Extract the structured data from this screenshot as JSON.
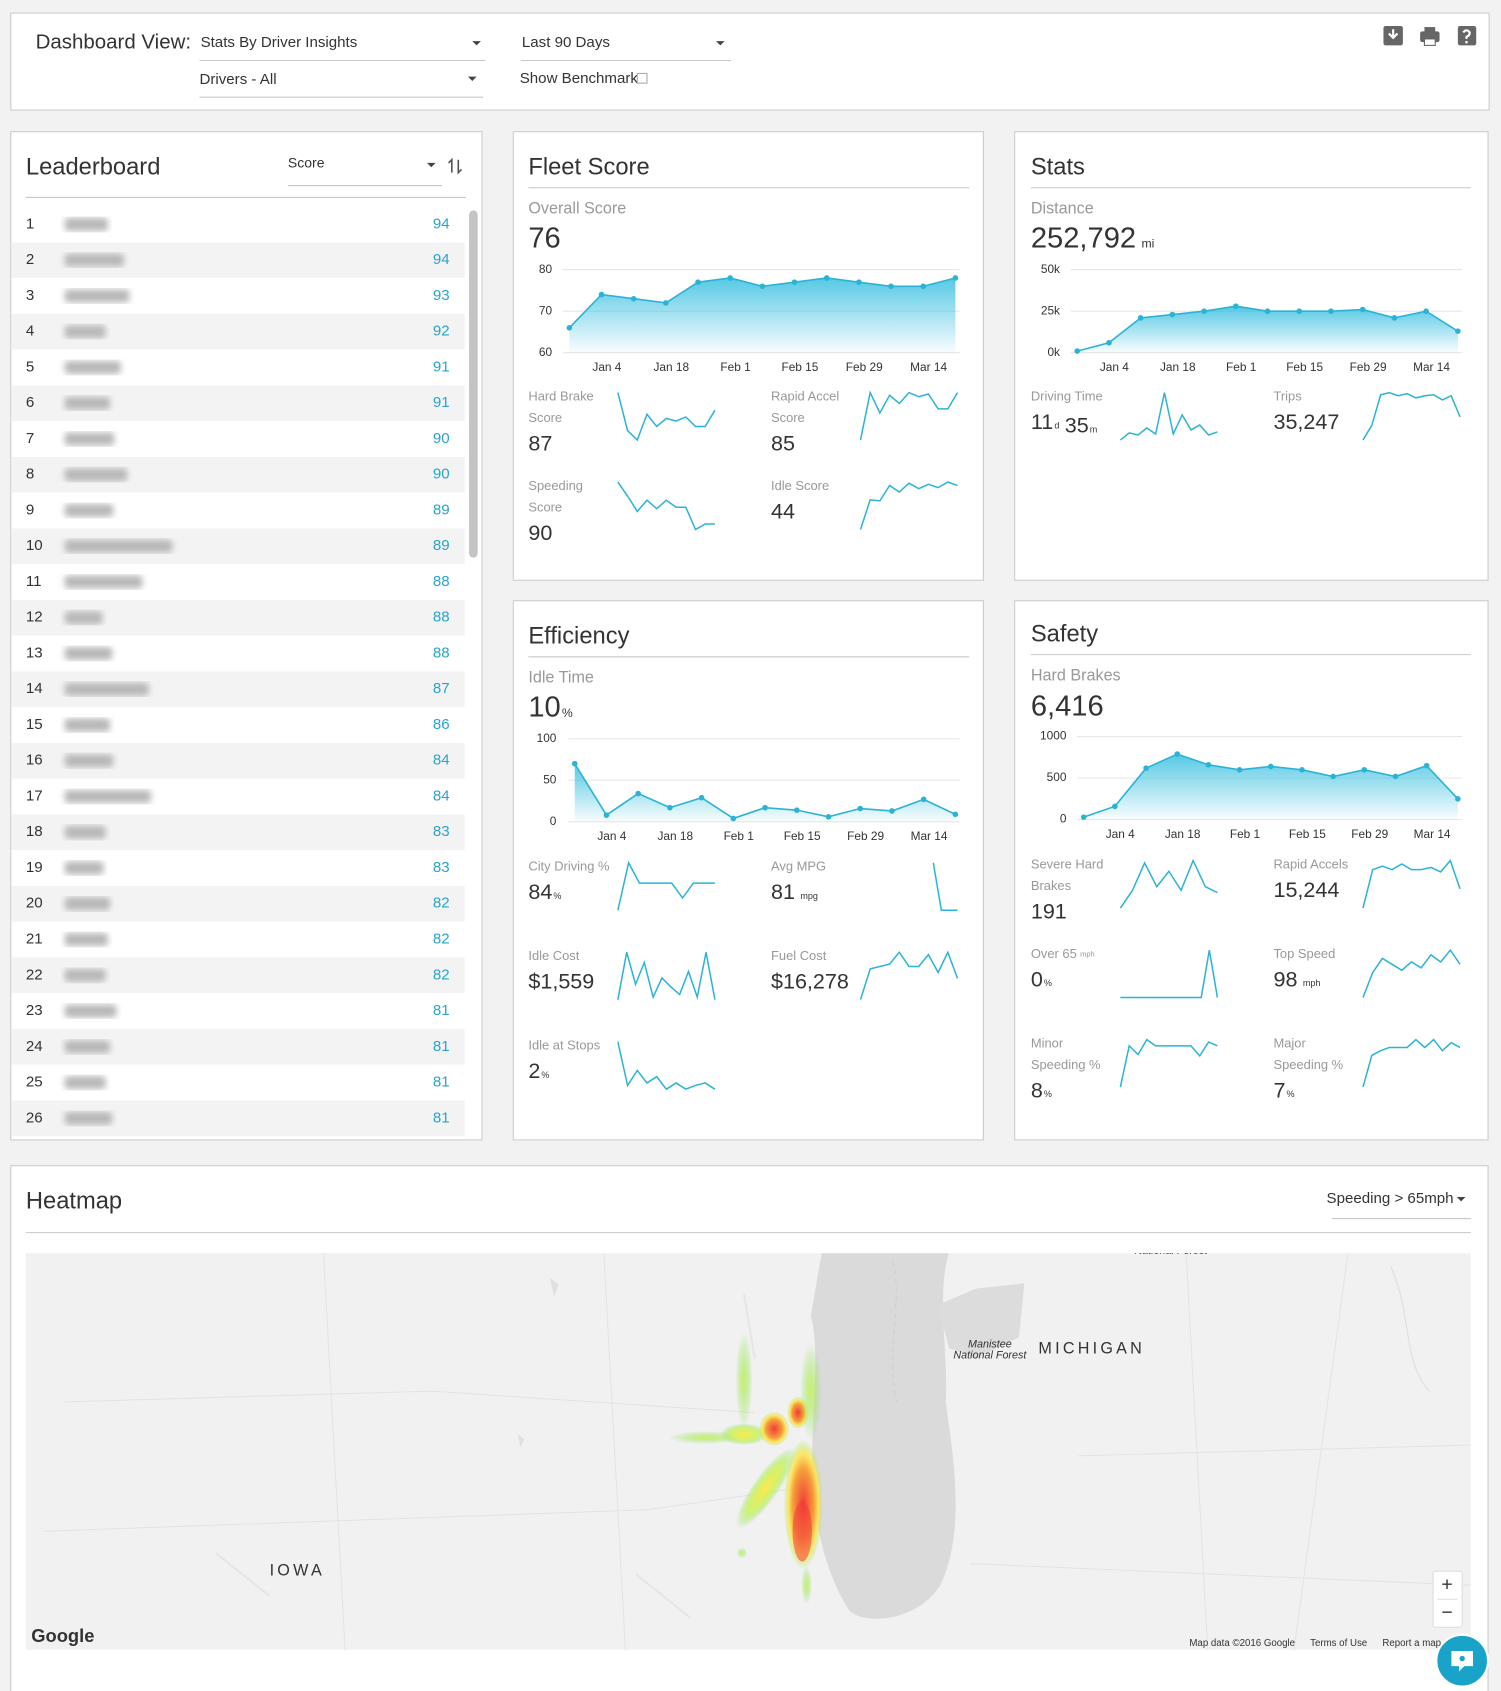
{
  "header": {
    "label": "Dashboard View:",
    "view": "Stats By Driver Insights",
    "drivers": "Drivers - All",
    "period": "Last 90 Days",
    "benchmark": "Show Benchmark"
  },
  "leaderboard": {
    "title": "Leaderboard",
    "sort": "Score",
    "rows": [
      {
        "rank": 1,
        "score": 94
      },
      {
        "rank": 2,
        "score": 94
      },
      {
        "rank": 3,
        "score": 93
      },
      {
        "rank": 4,
        "score": 92
      },
      {
        "rank": 5,
        "score": 91
      },
      {
        "rank": 6,
        "score": 91
      },
      {
        "rank": 7,
        "score": 90
      },
      {
        "rank": 8,
        "score": 90
      },
      {
        "rank": 9,
        "score": 89
      },
      {
        "rank": 10,
        "score": 89
      },
      {
        "rank": 11,
        "score": 88
      },
      {
        "rank": 12,
        "score": 88
      },
      {
        "rank": 13,
        "score": 88
      },
      {
        "rank": 14,
        "score": 87
      },
      {
        "rank": 15,
        "score": 86
      },
      {
        "rank": 16,
        "score": 84
      },
      {
        "rank": 17,
        "score": 84
      },
      {
        "rank": 18,
        "score": 83
      },
      {
        "rank": 19,
        "score": 83
      },
      {
        "rank": 20,
        "score": 82
      },
      {
        "rank": 21,
        "score": 82
      },
      {
        "rank": 22,
        "score": 82
      },
      {
        "rank": 23,
        "score": 81
      },
      {
        "rank": 24,
        "score": 81
      },
      {
        "rank": 25,
        "score": 81
      },
      {
        "rank": 26,
        "score": 81
      }
    ]
  },
  "fleet_score": {
    "title": "Fleet Score",
    "main": {
      "label": "Overall Score",
      "parts": [
        {
          "value": 76
        }
      ]
    },
    "metrics": [
      {
        "label": [
          "Hard Brake",
          "Score"
        ],
        "parts": [
          {
            "value": 87
          }
        ],
        "trend": [
          43,
          15,
          8,
          27,
          18,
          24,
          22,
          25,
          18,
          18,
          30
        ]
      },
      {
        "label": [
          "Rapid Accel",
          "Score"
        ],
        "parts": [
          {
            "value": 85
          }
        ],
        "trend": [
          10,
          45,
          30,
          43,
          37,
          45,
          42,
          44,
          33,
          33,
          45
        ]
      },
      {
        "label": [
          "Speeding",
          "Score"
        ],
        "parts": [
          {
            "value": 90
          }
        ],
        "trend": [
          38,
          28,
          17,
          25,
          19,
          25,
          20,
          20,
          4,
          8,
          8
        ]
      },
      {
        "label": [
          "Idle Score"
        ],
        "parts": [
          {
            "value": 44
          }
        ],
        "trend": [
          3,
          30,
          29,
          43,
          37,
          45,
          40,
          44,
          41,
          46,
          43
        ]
      }
    ]
  },
  "stats": {
    "title": "Stats",
    "main": {
      "label": "Distance",
      "parts": [
        {
          "value": "252,792",
          "unit": "mi"
        }
      ]
    },
    "metrics": [
      {
        "label": [
          "Driving Time"
        ],
        "parts": [
          {
            "value": 11,
            "unit": "d"
          },
          {
            "value": 35,
            "unit": "m"
          }
        ],
        "trend": [
          2,
          9,
          7,
          14,
          8,
          49,
          8,
          27,
          12,
          17,
          7,
          10
        ]
      },
      {
        "label": [
          "Trips"
        ],
        "parts": [
          {
            "value": "35,247"
          }
        ],
        "trend": [
          2,
          16,
          45,
          47,
          44,
          46,
          42,
          44,
          45,
          40,
          44,
          24
        ]
      }
    ]
  },
  "efficiency": {
    "title": "Efficiency",
    "main": {
      "label": "Idle Time",
      "parts": [
        {
          "value": 10,
          "unit": "%"
        }
      ]
    },
    "metrics": [
      {
        "label": [
          "City Driving %"
        ],
        "parts": [
          {
            "value": 84,
            "unit": "%"
          }
        ],
        "trend": [
          5,
          40,
          25,
          25,
          25,
          25,
          14,
          25,
          25,
          25
        ]
      },
      {
        "label": [
          "Avg MPG"
        ],
        "parts": [
          {
            "value": 81,
            "unit": "mpg"
          }
        ],
        "trend": [
          null,
          null,
          null,
          null,
          null,
          null,
          null,
          null,
          null,
          40,
          2,
          2,
          2
        ]
      },
      {
        "label": [
          "Idle Cost"
        ],
        "parts": [
          {
            "value": "$1,559"
          }
        ],
        "trend": [
          3,
          40,
          15,
          32,
          5,
          20,
          13,
          7,
          25,
          5,
          40,
          3
        ]
      },
      {
        "label": [
          "Fuel Cost"
        ],
        "parts": [
          {
            "value": "$16,278"
          }
        ],
        "trend": [
          2,
          28,
          30,
          32,
          42,
          30,
          30,
          40,
          25,
          42,
          20
        ]
      },
      {
        "label": [
          "Idle at Stops"
        ],
        "parts": [
          {
            "value": 2,
            "unit": "%"
          }
        ],
        "trend": [
          42,
          7,
          19,
          9,
          14,
          4,
          9,
          4,
          7,
          9,
          4
        ]
      }
    ]
  },
  "safety": {
    "title": "Safety",
    "main": {
      "label": "Hard Brakes",
      "parts": [
        {
          "value": "6,416"
        }
      ]
    },
    "metrics": [
      {
        "label": [
          "Severe Hard",
          "Brakes"
        ],
        "parts": [
          {
            "value": 191
          }
        ],
        "trend": [
          3,
          18,
          41,
          21,
          34,
          18,
          43,
          21,
          16
        ]
      },
      {
        "label": [
          "Rapid Accels"
        ],
        "parts": [
          {
            "value": "15,244"
          }
        ],
        "trend": [
          3,
          37,
          40,
          37,
          42,
          37,
          37,
          39,
          35,
          45,
          20
        ]
      },
      {
        "label": [
          "Over 65"
        ],
        "label_unit": "mph",
        "parts": [
          {
            "value": 0,
            "unit": "%"
          }
        ],
        "trend": [
          0,
          0,
          0,
          0,
          0,
          0,
          0,
          0,
          0,
          0,
          0,
          26,
          0
        ]
      },
      {
        "label": [
          "Top Speed"
        ],
        "parts": [
          {
            "value": 98,
            "unit": "mph"
          }
        ],
        "trend": [
          2,
          23,
          35,
          30,
          25,
          32,
          27,
          38,
          32,
          42,
          30
        ]
      },
      {
        "label": [
          "Minor",
          "Speeding %"
        ],
        "parts": [
          {
            "value": 8,
            "unit": "%"
          }
        ],
        "trend": [
          2,
          35,
          28,
          40,
          35,
          35,
          35,
          35,
          35,
          27,
          38,
          35
        ]
      },
      {
        "label": [
          "Major",
          "Speeding %"
        ],
        "parts": [
          {
            "value": 7,
            "unit": "%"
          }
        ],
        "trend": [
          2,
          22,
          25,
          27,
          27,
          27,
          32,
          27,
          32,
          25,
          30,
          27
        ]
      }
    ]
  },
  "chart_data": [
    {
      "type": "area",
      "color": "#2bb3d6",
      "grid": true,
      "categories": [
        null,
        "Jan 4",
        null,
        "Jan 18",
        null,
        "Feb 1",
        null,
        "Feb 15",
        null,
        "Feb 29",
        null,
        "Mar 14",
        null
      ],
      "values": [
        66,
        74,
        73,
        72,
        77,
        78,
        76,
        77,
        78,
        77,
        76,
        76,
        78
      ],
      "ylim": [
        60,
        80
      ],
      "yticks": [
        60,
        70,
        80
      ]
    },
    {
      "type": "area",
      "color": "#2bb3d6",
      "grid": true,
      "categories": [
        null,
        "Jan 4",
        null,
        "Jan 18",
        null,
        "Feb 1",
        null,
        "Feb 15",
        null,
        "Feb 29",
        null,
        "Mar 14",
        null
      ],
      "values": [
        1000,
        6000,
        21000,
        23000,
        25000,
        28000,
        25000,
        25000,
        25000,
        26000,
        21000,
        25000,
        13000
      ],
      "ylim": [
        0,
        50000
      ],
      "yticks": [
        {
          "value": 0,
          "label": "0k"
        },
        {
          "value": 25000,
          "label": "25k"
        },
        {
          "value": 50000,
          "label": "50k"
        }
      ]
    },
    {
      "type": "area",
      "color": "#2bb3d6",
      "grid": true,
      "categories": [
        null,
        "Jan 4",
        null,
        "Jan 18",
        null,
        "Feb 1",
        null,
        "Feb 15",
        null,
        "Feb 29",
        null,
        "Mar 14",
        null
      ],
      "values": [
        70,
        8,
        34,
        17,
        29,
        4,
        17,
        14,
        6,
        16,
        13,
        27,
        9
      ],
      "ylim": [
        0,
        100
      ],
      "yticks": [
        0,
        50,
        100
      ]
    },
    {
      "type": "area",
      "color": "#2bb3d6",
      "grid": true,
      "categories": [
        null,
        "Jan 4",
        null,
        "Jan 18",
        null,
        "Feb 1",
        null,
        "Feb 15",
        null,
        "Feb 29",
        null,
        "Mar 14",
        null
      ],
      "values": [
        30,
        160,
        620,
        790,
        660,
        600,
        640,
        600,
        520,
        600,
        520,
        650,
        250
      ],
      "ylim": [
        0,
        1000
      ],
      "yticks": [
        0,
        500,
        1000
      ]
    }
  ],
  "heatmap": {
    "title": "Heatmap",
    "filter": "Speeding > 65mph"
  },
  "map": {
    "state_east": "MICHIGAN",
    "state_west": "IOWA",
    "forest_name": "Manistee",
    "forest_type": "National Forest",
    "forest_top": "National Forest",
    "logo": "Google",
    "attribution": "Map data ©2016 Google",
    "terms": "Terms of Use",
    "report": "Report a map error",
    "zoom_in": "+",
    "zoom_out": "−"
  }
}
